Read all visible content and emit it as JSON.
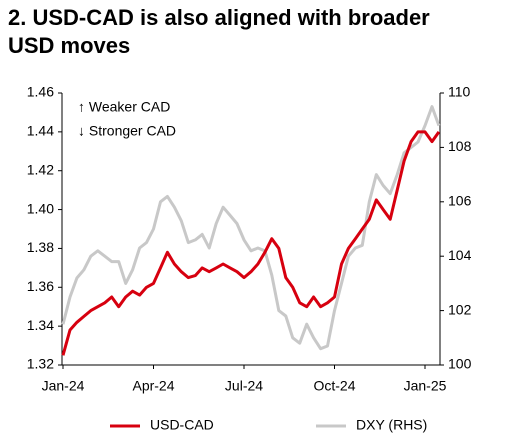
{
  "chart_data": {
    "type": "line",
    "title": "2. USD-CAD is also aligned with broader USD moves",
    "annotations": [
      "↑ Weaker CAD",
      "↓ Stronger CAD"
    ],
    "categories": [
      "Jan-24",
      null,
      null,
      null,
      null,
      null,
      null,
      null,
      null,
      null,
      null,
      null,
      null,
      "Apr-24",
      null,
      null,
      null,
      null,
      null,
      null,
      null,
      null,
      null,
      null,
      null,
      null,
      "Jul-24",
      null,
      null,
      null,
      null,
      null,
      null,
      null,
      null,
      null,
      null,
      null,
      null,
      "Oct-24",
      null,
      null,
      null,
      null,
      null,
      null,
      null,
      null,
      null,
      null,
      null,
      null,
      "Jan-25",
      null,
      null
    ],
    "series": [
      {
        "name": "USD-CAD",
        "color": "#d7000f",
        "values": [
          1.325,
          1.338,
          1.342,
          1.345,
          1.348,
          1.35,
          1.352,
          1.355,
          1.35,
          1.355,
          1.358,
          1.356,
          1.36,
          1.362,
          1.37,
          1.378,
          1.372,
          1.368,
          1.365,
          1.366,
          1.37,
          1.368,
          1.37,
          1.372,
          1.37,
          1.368,
          1.365,
          1.368,
          1.372,
          1.378,
          1.385,
          1.38,
          1.365,
          1.36,
          1.352,
          1.35,
          1.355,
          1.35,
          1.352,
          1.355,
          1.372,
          1.38,
          1.385,
          1.39,
          1.395,
          1.405,
          1.4,
          1.395,
          1.41,
          1.425,
          1.435,
          1.44,
          1.44,
          1.435,
          1.44
        ]
      },
      {
        "name": "DXY (RHS)",
        "color": "#c8c8c8",
        "axis": "y2",
        "values": [
          101.5,
          102.5,
          103.2,
          103.5,
          104.0,
          104.2,
          104.0,
          103.8,
          103.8,
          103.0,
          103.5,
          104.3,
          104.5,
          105.0,
          106.0,
          106.2,
          105.8,
          105.3,
          104.5,
          104.6,
          104.8,
          104.3,
          105.2,
          105.8,
          105.5,
          105.2,
          104.6,
          104.2,
          104.3,
          104.2,
          103.3,
          102.0,
          101.8,
          101.0,
          100.8,
          101.5,
          101.0,
          100.6,
          100.7,
          102.0,
          103.0,
          104.0,
          104.3,
          104.4,
          106.0,
          107.0,
          106.6,
          106.3,
          107.0,
          107.8,
          108.0,
          108.2,
          108.8,
          109.5,
          108.8
        ]
      }
    ],
    "ylim": [
      1.32,
      1.46
    ],
    "yticks": [
      1.32,
      1.34,
      1.36,
      1.38,
      {
        "value": 1.4,
        "label": "1.40"
      },
      1.42,
      1.44,
      1.46
    ],
    "y2lim": [
      100,
      110
    ],
    "y2ticks": [
      100,
      102,
      104,
      106,
      108,
      110
    ],
    "legend": "bottom"
  }
}
